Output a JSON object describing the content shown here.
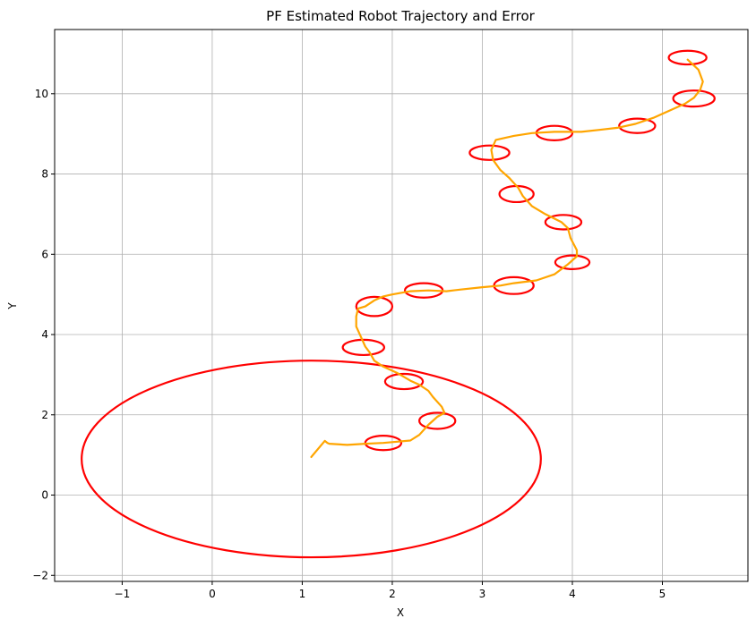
{
  "chart_data": {
    "type": "line",
    "title": "PF Estimated Robot Trajectory and Error",
    "xlabel": "X",
    "ylabel": "Y",
    "xlim": [
      -1.75,
      5.95
    ],
    "ylim": [
      -2.15,
      11.6
    ],
    "xticks": [
      -1,
      0,
      1,
      2,
      3,
      4,
      5
    ],
    "xtick_labels": [
      "−1",
      "0",
      "1",
      "2",
      "3",
      "4",
      "5"
    ],
    "yticks": [
      -2,
      0,
      2,
      4,
      6,
      8,
      10
    ],
    "ytick_labels": [
      "−2",
      "0",
      "2",
      "4",
      "6",
      "8",
      "10"
    ],
    "grid": true,
    "colors": {
      "trajectory": "#ffa500",
      "error_ellipse": "#ff0000",
      "grid": "#b0b0b0"
    },
    "series": [
      {
        "kind": "trajectory",
        "x": [
          1.1,
          1.25,
          1.28,
          1.3,
          1.5,
          1.7,
          1.9,
          2.0,
          2.2,
          2.3,
          2.4,
          2.5,
          2.58,
          2.55,
          2.45,
          2.4,
          2.3,
          2.2,
          2.05,
          1.9,
          1.8,
          1.75,
          1.7,
          1.65,
          1.6,
          1.6,
          1.62,
          1.7,
          1.8,
          1.9,
          2.0,
          2.2,
          2.4,
          2.6,
          2.75,
          3.0,
          3.2,
          3.35,
          3.6,
          3.8,
          3.95,
          4.05,
          4.05,
          3.98,
          3.95,
          3.88,
          3.7,
          3.55,
          3.45,
          3.4,
          3.3,
          3.2,
          3.12,
          3.1,
          3.15,
          3.35,
          3.55,
          3.8,
          4.1,
          4.3,
          4.5,
          4.7,
          4.9,
          5.05,
          5.25,
          5.35,
          5.42,
          5.45,
          5.4,
          5.28
        ],
        "y": [
          0.95,
          1.35,
          1.3,
          1.28,
          1.25,
          1.28,
          1.3,
          1.32,
          1.36,
          1.5,
          1.75,
          1.95,
          2.05,
          2.2,
          2.45,
          2.6,
          2.75,
          2.85,
          3.05,
          3.2,
          3.35,
          3.55,
          3.7,
          3.95,
          4.2,
          4.45,
          4.65,
          4.7,
          4.85,
          4.95,
          5.0,
          5.08,
          5.1,
          5.08,
          5.12,
          5.18,
          5.22,
          5.28,
          5.35,
          5.5,
          5.75,
          5.95,
          6.1,
          6.4,
          6.65,
          6.8,
          7.0,
          7.2,
          7.45,
          7.65,
          7.9,
          8.1,
          8.35,
          8.6,
          8.85,
          8.95,
          9.02,
          9.05,
          9.05,
          9.1,
          9.15,
          9.25,
          9.4,
          9.55,
          9.75,
          9.9,
          10.1,
          10.3,
          10.6,
          10.85
        ]
      }
    ],
    "ellipses": [
      {
        "cx": 1.1,
        "cy": 0.9,
        "rx": 2.55,
        "ry": 2.45
      },
      {
        "cx": 1.9,
        "cy": 1.3,
        "rx": 0.2,
        "ry": 0.18
      },
      {
        "cx": 2.5,
        "cy": 1.85,
        "rx": 0.2,
        "ry": 0.2
      },
      {
        "cx": 2.13,
        "cy": 2.83,
        "rx": 0.21,
        "ry": 0.19
      },
      {
        "cx": 1.68,
        "cy": 3.68,
        "rx": 0.23,
        "ry": 0.19
      },
      {
        "cx": 1.8,
        "cy": 4.7,
        "rx": 0.2,
        "ry": 0.24
      },
      {
        "cx": 2.35,
        "cy": 5.1,
        "rx": 0.21,
        "ry": 0.18
      },
      {
        "cx": 3.35,
        "cy": 5.22,
        "rx": 0.22,
        "ry": 0.21
      },
      {
        "cx": 4.0,
        "cy": 5.8,
        "rx": 0.19,
        "ry": 0.17
      },
      {
        "cx": 3.9,
        "cy": 6.8,
        "rx": 0.2,
        "ry": 0.18
      },
      {
        "cx": 3.38,
        "cy": 7.5,
        "rx": 0.19,
        "ry": 0.2
      },
      {
        "cx": 3.08,
        "cy": 8.53,
        "rx": 0.22,
        "ry": 0.18
      },
      {
        "cx": 3.8,
        "cy": 9.02,
        "rx": 0.2,
        "ry": 0.18
      },
      {
        "cx": 4.72,
        "cy": 9.2,
        "rx": 0.2,
        "ry": 0.18
      },
      {
        "cx": 5.35,
        "cy": 9.88,
        "rx": 0.23,
        "ry": 0.2
      },
      {
        "cx": 5.28,
        "cy": 10.9,
        "rx": 0.21,
        "ry": 0.17
      }
    ]
  }
}
